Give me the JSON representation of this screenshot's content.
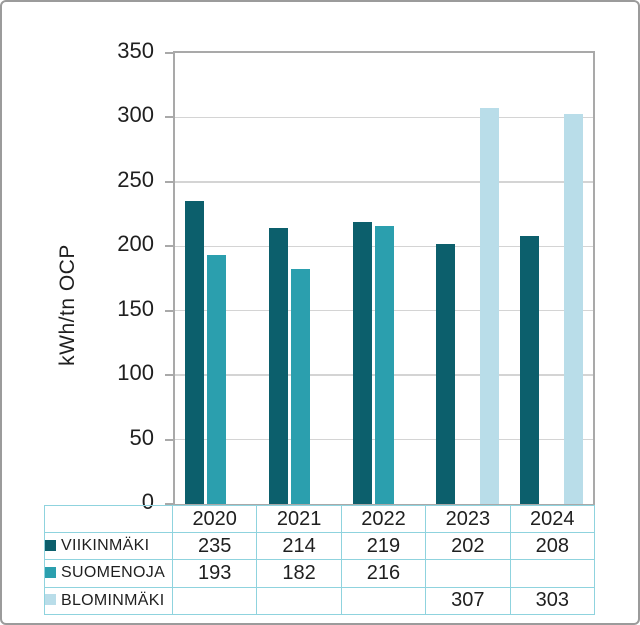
{
  "chart_data": {
    "type": "bar",
    "title": "",
    "ylabel": "kWh/tn OCP",
    "xlabel": "",
    "ylim": [
      0,
      350
    ],
    "ytick_step": 50,
    "yticks": [
      0,
      50,
      100,
      150,
      200,
      250,
      300,
      350
    ],
    "categories": [
      "2020",
      "2021",
      "2022",
      "2023",
      "2024"
    ],
    "series": [
      {
        "name": "VIIKINMÄKI",
        "color": "#0c5f6c",
        "values": [
          235,
          214,
          219,
          202,
          208
        ]
      },
      {
        "name": "SUOMENOJA",
        "color": "#2b9fae",
        "values": [
          193,
          182,
          216,
          null,
          null
        ]
      },
      {
        "name": "BLOMINMÄKI",
        "color": "#b9dde9",
        "values": [
          null,
          null,
          null,
          307,
          303
        ]
      }
    ],
    "grid": true,
    "legend_position": "table-left-column",
    "data_table_shown": true
  },
  "colors": {
    "plot_border": "#a9a9a9",
    "gridline": "#d4d4d4",
    "table_border": "#8fd3de",
    "text": "#1f1f1f",
    "frame_border": "#9b9b9b",
    "background": "#ffffff"
  }
}
